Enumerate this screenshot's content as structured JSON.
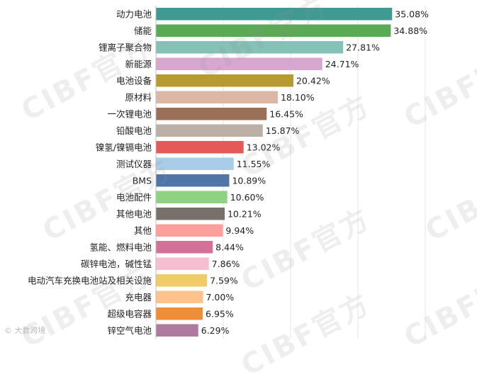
{
  "chart_data": {
    "type": "bar",
    "orientation": "horizontal",
    "title": "",
    "xlabel": "",
    "ylabel": "",
    "xlim": [
      0,
      40
    ],
    "grid": true,
    "legend": "none",
    "categories": [
      "动力电池",
      "储能",
      "锂离子聚合物",
      "新能源",
      "电池设备",
      "原材料",
      "一次锂电池",
      "铅酸电池",
      "镍氢/镍镉电池",
      "测试仪器",
      "BMS",
      "电池配件",
      "其他电池",
      "其他",
      "氢能、燃料电池",
      "碳锌电池，碱性锰",
      "电动汽车充换电池站及相关设施",
      "充电器",
      "超级电容器",
      "锌空气电池"
    ],
    "values": [
      35.08,
      34.88,
      27.81,
      24.71,
      20.42,
      18.1,
      16.45,
      15.87,
      13.02,
      11.55,
      10.89,
      10.6,
      10.21,
      9.94,
      8.44,
      7.86,
      7.59,
      7.0,
      6.95,
      6.29
    ],
    "value_labels": [
      "35.08%",
      "34.88%",
      "27.81%",
      "24.71%",
      "20.42%",
      "18.10%",
      "16.45%",
      "15.87%",
      "13.02%",
      "11.55%",
      "10.89%",
      "10.60%",
      "10.21%",
      "9.94%",
      "8.44%",
      "7.86%",
      "7.59%",
      "7.00%",
      "6.95%",
      "6.29%"
    ],
    "colors": [
      "#3e9a93",
      "#5aa954",
      "#84c1b6",
      "#d7a7d0",
      "#b79a33",
      "#dcb7a5",
      "#9b7059",
      "#bcb0a6",
      "#e35a59",
      "#a9cde9",
      "#4f76a7",
      "#8ed282",
      "#77706b",
      "#fe9f9c",
      "#d47199",
      "#f6bfd1",
      "#efcc67",
      "#fec38c",
      "#ef8e3a",
      "#b07aa0"
    ]
  },
  "watermark": "CIBF官方",
  "credit": "© 大数跨境"
}
